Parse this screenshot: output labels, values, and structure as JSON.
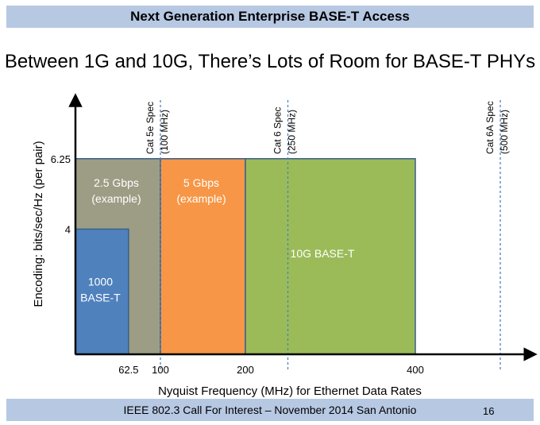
{
  "header": {
    "banner_title": "Next Generation Enterprise BASE-T Access"
  },
  "slide": {
    "title": "Between 1G and 10G, There’s Lots of Room for BASE-T PHYs"
  },
  "footer": {
    "text": "IEEE 802.3 Call For Interest – November 2014 San Antonio",
    "page_number": "16"
  },
  "chart_data": {
    "type": "area",
    "title": "Between 1G and 10G, There’s Lots of Room for BASE-T PHYs",
    "xlabel": "Nyquist Frequency (MHz) for Ethernet Data Rates",
    "ylabel": "Encoding: bits/sec/Hz (per pair)",
    "x_ticks": [
      {
        "value": 62.5,
        "label": "62.5"
      },
      {
        "value": 100,
        "label": "100"
      },
      {
        "value": 200,
        "label": "200"
      },
      {
        "value": 400,
        "label": "400"
      }
    ],
    "y_ticks": [
      {
        "value": 4,
        "label": "4"
      },
      {
        "value": 6.25,
        "label": "6.25"
      }
    ],
    "regions": [
      {
        "name": "2.5 Gbps (example)",
        "line1": "2.5 Gbps",
        "line2": "(example)",
        "x0": 0,
        "x1": 100,
        "y0": 0,
        "y1": 6.25,
        "color": "#9d9d86",
        "text_color": "#ffffff"
      },
      {
        "name": "5 Gbps (example)",
        "line1": "5 Gbps",
        "line2": "(example)",
        "x0": 100,
        "x1": 200,
        "y0": 0,
        "y1": 6.25,
        "color": "#f79646",
        "text_color": "#ffffff"
      },
      {
        "name": "10G BASE-T",
        "line1": "10G BASE-T",
        "line2": "",
        "x0": 200,
        "x1": 400,
        "y0": 0,
        "y1": 6.25,
        "color": "#9bbb59",
        "text_color": "#ffffff"
      },
      {
        "name": "1000 BASE-T",
        "line1": "1000",
        "line2": "BASE-T",
        "x0": 0,
        "x1": 62.5,
        "y0": 0,
        "y1": 4,
        "color": "#4f81bd",
        "text_color": "#ffffff"
      }
    ],
    "spec_lines": [
      {
        "value": 100,
        "line1": "Cat 5e Spec",
        "line2": "(100 MHz)"
      },
      {
        "value": 250,
        "line1": "Cat 6 Spec",
        "line2": "(250 MHz)"
      },
      {
        "value": 500,
        "line1": "Cat 6A Spec",
        "line2": "(500 MHz)"
      }
    ],
    "colors": {
      "axis": "#000000",
      "spec_line": "#4f81bd",
      "region_border": "#3a5f8a"
    }
  }
}
